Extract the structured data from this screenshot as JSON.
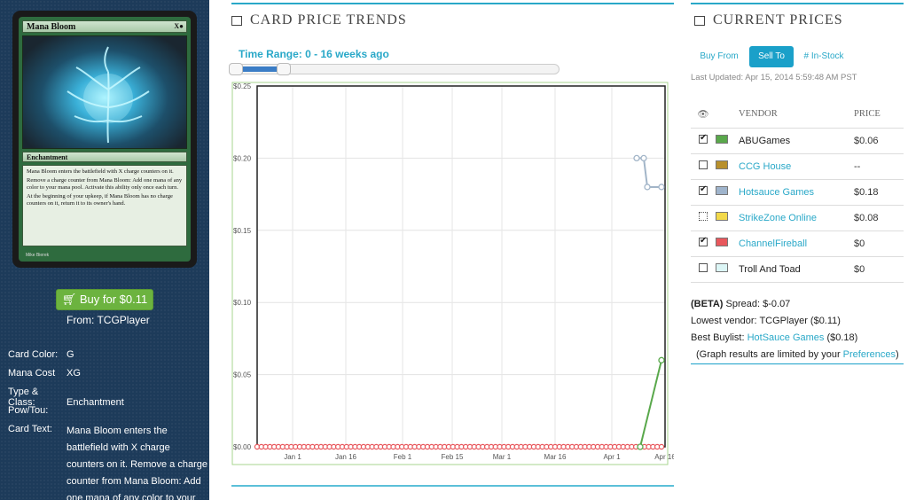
{
  "card": {
    "name": "Mana Bloom",
    "mana_symbols": "X●",
    "type_line": "Enchantment",
    "rules_text": [
      "Mana Bloom enters the battlefield with X charge counters on it.",
      "Remove a charge counter from Mana Bloom: Add one mana of any color to your mana pool. Activate this ability only once each turn.",
      "At the beginning of your upkeep, if Mana Bloom has no charge counters on it, return it to its owner's hand."
    ],
    "artist": "Mike Bierek"
  },
  "buy": {
    "label": "Buy for $0.11",
    "from": "From: TCGPlayer"
  },
  "info": {
    "color_label": "Card Color:",
    "color_value": "G",
    "mana_label": "Mana Cost",
    "mana_value": "XG",
    "type_label": "Type & Class:",
    "type_value": "Enchantment",
    "pt_label": "Pow/Tou:",
    "pt_value": "",
    "text_label": "Card Text:",
    "text_lines": [
      "Mana Bloom enters the",
      "battlefield with X charge",
      "counters on it. Remove a charge",
      "counter from Mana Bloom: Add",
      "one mana of any color to your"
    ]
  },
  "trends": {
    "title": "Card Price Trends",
    "range_label": "Time Range: 0 - 16 weeks ago",
    "range": {
      "min_weeks": 0,
      "max_weeks": 16
    }
  },
  "chart_data": {
    "type": "line",
    "ylim": [
      0,
      0.25
    ],
    "y_ticks": [
      "$0.00",
      "$0.05",
      "$0.10",
      "$0.15",
      "$0.20",
      "$0.25"
    ],
    "x_ticks": [
      "Jan 1",
      "Jan 16",
      "Feb 1",
      "Feb 15",
      "Mar 1",
      "Mar 16",
      "Apr 1",
      "Apr 16"
    ],
    "series": [
      {
        "name": "ChannelFireball",
        "color": "#e8575c",
        "points": [
          [
            "Dec 22",
            0
          ],
          [
            "Apr 15",
            0
          ]
        ]
      },
      {
        "name": "Hotsauce Games",
        "color": "#a2b5c8",
        "points": [
          [
            "Apr 8",
            0.2
          ],
          [
            "Apr 10",
            0.2
          ],
          [
            "Apr 11",
            0.18
          ],
          [
            "Apr 15",
            0.18
          ]
        ]
      },
      {
        "name": "ABUGames",
        "color": "#59a84b",
        "points": [
          [
            "Apr 9",
            0
          ],
          [
            "Apr 15",
            0.06
          ]
        ]
      }
    ]
  },
  "prices": {
    "title": "Current Prices",
    "tabs": [
      "Buy From",
      "Sell To",
      "# In-Stock"
    ],
    "active_tab": "Sell To",
    "last_updated": "Last Updated: Apr 15, 2014 5:59:48 AM PST",
    "col_vendor": "Vendor",
    "col_price": "Price",
    "vendors": [
      {
        "name": "ABUGames",
        "price": "$0.06",
        "checked": true,
        "color": "#59a84b",
        "link": false
      },
      {
        "name": "CCG House",
        "price": "--",
        "checked": false,
        "color": "#b8902c",
        "link": true
      },
      {
        "name": "Hotsauce Games",
        "price": "$0.18",
        "checked": true,
        "color": "#9fb4cc",
        "link": true
      },
      {
        "name": "StrikeZone Online",
        "price": "$0.08",
        "checked": false,
        "color": "#f2d94a",
        "link": true,
        "dotted": true
      },
      {
        "name": "ChannelFireball",
        "price": "$0",
        "checked": true,
        "color": "#e8575c",
        "link": true
      },
      {
        "name": "Troll And Toad",
        "price": "$0",
        "checked": false,
        "color": "#dcf6f6",
        "link": false
      }
    ],
    "stats": {
      "beta": "(BETA)",
      "spread": " Spread: $-0.07",
      "lowest": "Lowest vendor: TCGPlayer ($0.11)",
      "buylist_prefix": "Best Buylist: ",
      "buylist_vendor": "HotSauce Games",
      "buylist_suffix": " ($0.18)",
      "note_prefix": "(Graph results are limited by your ",
      "note_link": "Preferences",
      "note_suffix": ")"
    }
  }
}
